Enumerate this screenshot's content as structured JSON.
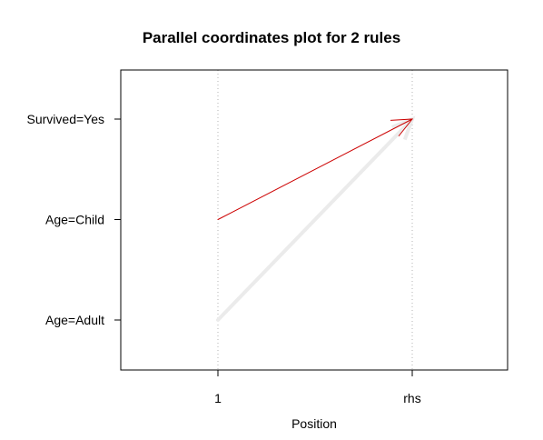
{
  "chart_data": {
    "type": "parallel-coordinates",
    "title": "Parallel coordinates plot for 2 rules",
    "xlabel": "Position",
    "ylabel": "",
    "x_categories": [
      "1",
      "rhs"
    ],
    "y_categories": [
      "Age=Adult",
      "Age=Child",
      "Survived=Yes"
    ],
    "grid": "vertical dotted",
    "rules": [
      {
        "from": {
          "x": "1",
          "y": "Age=Adult"
        },
        "to": {
          "x": "rhs",
          "y": "Survived=Yes"
        },
        "color": "#ebebeb"
      },
      {
        "from": {
          "x": "1",
          "y": "Age=Child"
        },
        "to": {
          "x": "rhs",
          "y": "Survived=Yes"
        },
        "color": "#cc0000"
      }
    ]
  }
}
